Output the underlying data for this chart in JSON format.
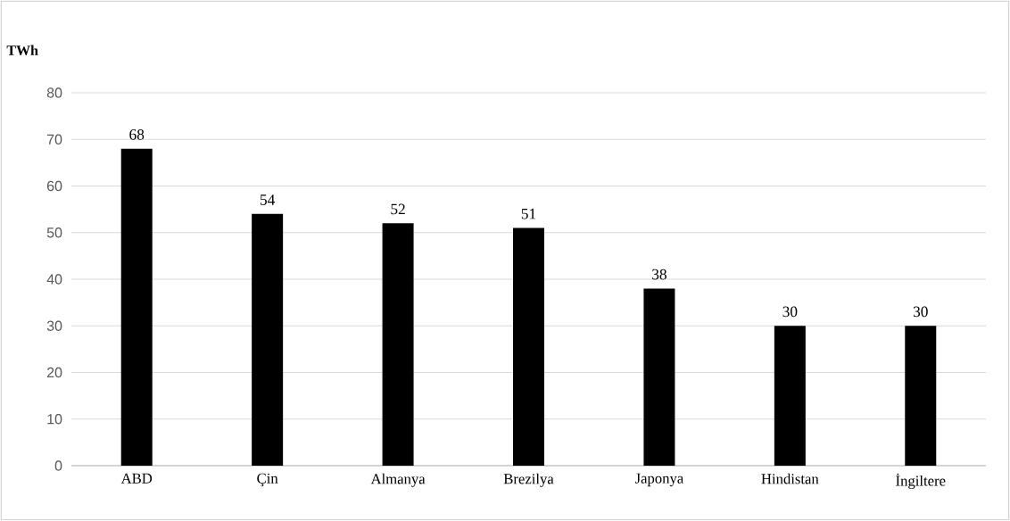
{
  "chart_data": {
    "type": "bar",
    "ylabel": "TWh",
    "categories": [
      "ABD",
      "Çin",
      "Almanya",
      "Brezilya",
      "Japonya",
      "Hindistan",
      "İngiltere"
    ],
    "values": [
      68,
      54,
      52,
      51,
      38,
      30,
      30
    ],
    "color": "#000000",
    "ylim": [
      0,
      80
    ],
    "yticks": [
      0,
      10,
      20,
      30,
      40,
      50,
      60,
      70,
      80
    ],
    "grid": "y",
    "data_labels": true
  }
}
